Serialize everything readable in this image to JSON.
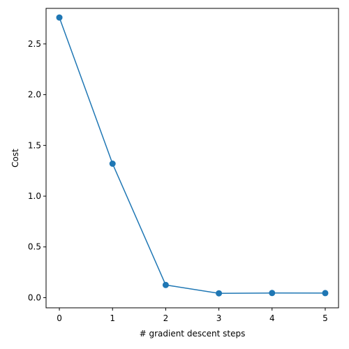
{
  "chart_data": {
    "type": "line",
    "title": "",
    "xlabel": "# gradient descent steps",
    "ylabel": "Cost",
    "x": [
      0,
      1,
      2,
      3,
      4,
      5
    ],
    "series": [
      {
        "values": [
          2.76,
          1.32,
          0.125,
          0.043,
          0.046,
          0.045
        ],
        "marker": "circle",
        "color": "#1f77b4"
      }
    ],
    "xlim": [
      -0.25,
      5.25
    ],
    "ylim": [
      -0.1,
      2.85
    ],
    "xticks": [
      0,
      1,
      2,
      3,
      4,
      5
    ],
    "xtick_labels": [
      "0",
      "1",
      "2",
      "3",
      "4",
      "5"
    ],
    "yticks": [
      0.0,
      0.5,
      1.0,
      1.5,
      2.0,
      2.5
    ],
    "ytick_labels": [
      "0.0",
      "0.5",
      "1.0",
      "1.5",
      "2.0",
      "2.5"
    ],
    "grid": false,
    "legend": false
  }
}
